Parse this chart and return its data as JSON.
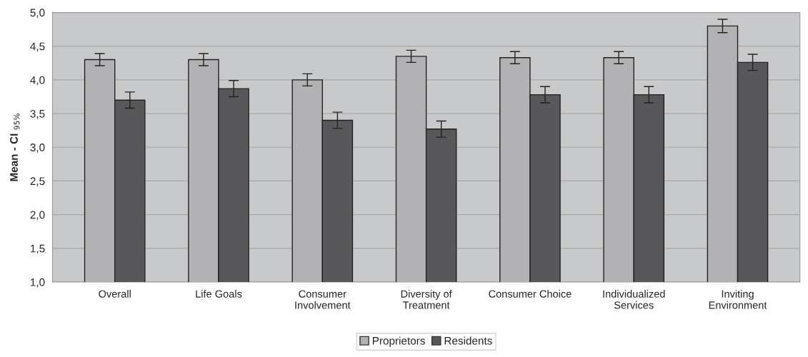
{
  "chart_data": {
    "type": "bar",
    "categories": [
      "Overall",
      "Life Goals",
      "Consumer\nInvolvement",
      "Diversity of\nTreatment",
      "Consumer Choice",
      "Individualized\nServices",
      "Inviting\nEnvironment"
    ],
    "series": [
      {
        "name": "Proprietors",
        "color": "#b2b2b4",
        "values": [
          4.3,
          4.3,
          4.0,
          4.35,
          4.33,
          4.33,
          4.8
        ],
        "errors": [
          0.09,
          0.09,
          0.09,
          0.09,
          0.09,
          0.09,
          0.1
        ]
      },
      {
        "name": "Residents",
        "color": "#58585a",
        "values": [
          3.7,
          3.87,
          3.4,
          3.27,
          3.78,
          3.78,
          4.26
        ],
        "errors": [
          0.12,
          0.12,
          0.12,
          0.12,
          0.12,
          0.12,
          0.12
        ]
      }
    ],
    "ylabel": "Mean - CI $_{95%}$",
    "ylim": [
      1.0,
      5.0
    ],
    "yticks": [
      {
        "value": 1.0,
        "label": "1,0"
      },
      {
        "value": 1.5,
        "label": "1,5"
      },
      {
        "value": 2.0,
        "label": "2,0"
      },
      {
        "value": 2.5,
        "label": "2,5"
      },
      {
        "value": 3.0,
        "label": "3,0"
      },
      {
        "value": 3.5,
        "label": "3,5"
      },
      {
        "value": 4.0,
        "label": "4,0"
      },
      {
        "value": 4.5,
        "label": "4,5"
      },
      {
        "value": 5.0,
        "label": "5,0"
      }
    ],
    "grid": "y",
    "legend": "bottom"
  }
}
